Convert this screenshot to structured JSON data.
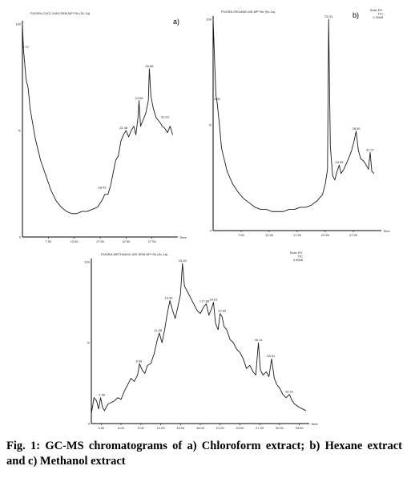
{
  "chart_data": [
    {
      "type": "line",
      "panel_label": "a)",
      "header": "PUGRA-CHCL3-MS-SEM-NP+Se (Sc 1a)",
      "y_ticks": [
        "100",
        "%",
        "0"
      ],
      "x_ticks": [
        "7.50",
        "12.50",
        "17.50",
        "22.50",
        "27.50"
      ],
      "x_axis_label": "Time",
      "xlim": [
        2.5,
        32.5
      ],
      "ylim": [
        0,
        100
      ],
      "peak_labels": [
        {
          "x": 3.1,
          "y": 88,
          "text": "3.70"
        },
        {
          "x": 17.9,
          "y": 22,
          "text": "18.42"
        },
        {
          "x": 22.0,
          "y": 50,
          "text": "22.48"
        },
        {
          "x": 25.0,
          "y": 64,
          "text": "24.95"
        },
        {
          "x": 27.0,
          "y": 79,
          "text": "26.88"
        },
        {
          "x": 30.0,
          "y": 55,
          "text": "31.03"
        }
      ],
      "series": [
        {
          "x": [
            2.5,
            2.7,
            3.0,
            3.2,
            3.6,
            4.0,
            5.0,
            6.0,
            7.0,
            8.0,
            9.0,
            10.0,
            11.0,
            12.0,
            13.0,
            14.0,
            15.0,
            16.0,
            17.0,
            17.8,
            18.4,
            19.0,
            19.5,
            20.0,
            20.5,
            21.0,
            21.5,
            22.0,
            22.5,
            23.0,
            23.5,
            24.0,
            24.4,
            24.8,
            25.0,
            25.3,
            25.8,
            26.3,
            26.8,
            27.0,
            27.3,
            27.8,
            28.3,
            29.0,
            29.5,
            30.0,
            30.5,
            31.0,
            31.5
          ],
          "y": [
            100,
            88,
            80,
            74,
            70,
            60,
            46,
            36,
            29,
            22,
            17,
            14,
            12,
            11,
            11,
            12,
            12,
            13,
            14,
            17,
            20,
            20,
            24,
            30,
            36,
            38,
            45,
            48,
            50,
            47,
            50,
            52,
            48,
            56,
            64,
            52,
            55,
            58,
            64,
            79,
            66,
            60,
            56,
            54,
            52,
            51,
            49,
            52,
            48
          ]
        }
      ]
    },
    {
      "type": "line",
      "panel_label": "b)",
      "header": "PUGRA-HEXANE-MS-NP+Se (Sc 1a)",
      "legend_text": [
        "Scan EI+",
        "TIC",
        "1.30e8"
      ],
      "y_ticks": [
        "100",
        "%",
        "0"
      ],
      "x_ticks": [
        "7.50",
        "12.50",
        "17.50",
        "22.50",
        "27.50"
      ],
      "x_axis_label": "Time",
      "xlim": [
        2.5,
        32.5
      ],
      "ylim": [
        0,
        100
      ],
      "peak_labels": [
        {
          "x": 3.2,
          "y": 61,
          "text": "3.55"
        },
        {
          "x": 23.1,
          "y": 100,
          "text": "23.31"
        },
        {
          "x": 25.0,
          "y": 31,
          "text": "24.95"
        },
        {
          "x": 28.0,
          "y": 47,
          "text": "28.00"
        },
        {
          "x": 30.5,
          "y": 37,
          "text": "31.07"
        }
      ],
      "series": [
        {
          "x": [
            2.5,
            2.8,
            3.0,
            3.2,
            3.4,
            3.7,
            4.0,
            5.0,
            6.0,
            7.0,
            8.0,
            9.0,
            10.0,
            11.0,
            12.0,
            13.0,
            14.0,
            15.0,
            16.0,
            17.0,
            18.0,
            19.0,
            20.0,
            21.0,
            22.0,
            22.5,
            22.9,
            23.1,
            23.4,
            23.8,
            24.2,
            24.6,
            25.0,
            25.3,
            25.8,
            26.3,
            26.8,
            27.2,
            27.6,
            28.0,
            28.4,
            28.8,
            29.3,
            29.8,
            30.2,
            30.5,
            30.8,
            31.2
          ],
          "y": [
            100,
            78,
            64,
            61,
            56,
            48,
            39,
            28,
            22,
            18,
            15,
            13,
            11,
            10,
            10,
            9,
            9,
            9,
            10,
            10,
            11,
            11,
            12,
            14,
            17,
            22,
            29,
            100,
            40,
            26,
            24,
            28,
            31,
            27,
            29,
            32,
            35,
            38,
            42,
            47,
            38,
            34,
            33,
            31,
            29,
            37,
            28,
            27
          ]
        }
      ]
    },
    {
      "type": "line",
      "panel_label": "c)",
      "header": "PUGRA-METHANOL-MS-SEM-NP+Se (Sc 1a)",
      "legend_text": [
        "Scan EI+",
        "TIC",
        "4.50e8"
      ],
      "y_ticks": [
        "100",
        "%",
        "0"
      ],
      "x_ticks": [
        "3.00",
        "6.00",
        "9.00",
        "12.00",
        "15.00",
        "18.00",
        "21.00",
        "24.00",
        "27.00",
        "30.00",
        "33.00"
      ],
      "x_axis_label": "Time",
      "xlim": [
        1.5,
        34.5
      ],
      "ylim": [
        0,
        100
      ],
      "peak_labels": [
        {
          "x": 3.1,
          "y": 16,
          "text": "2.95"
        },
        {
          "x": 8.7,
          "y": 37,
          "text": "8.99"
        },
        {
          "x": 11.6,
          "y": 56,
          "text": "11.58"
        },
        {
          "x": 13.2,
          "y": 76,
          "text": "13.43"
        },
        {
          "x": 15.3,
          "y": 99,
          "text": "15.39"
        },
        {
          "x": 18.6,
          "y": 74,
          "text": "+17.88"
        },
        {
          "x": 20.0,
          "y": 75,
          "text": "20.01"
        },
        {
          "x": 21.3,
          "y": 68,
          "text": "20.69"
        },
        {
          "x": 26.8,
          "y": 50,
          "text": "26.11"
        },
        {
          "x": 28.7,
          "y": 40,
          "text": "28.81"
        },
        {
          "x": 31.5,
          "y": 18,
          "text": "30.91"
        }
      ],
      "series": [
        {
          "x": [
            1.5,
            1.9,
            2.3,
            2.6,
            2.9,
            3.2,
            3.5,
            4.0,
            4.5,
            5.0,
            5.5,
            6.0,
            6.5,
            7.0,
            7.5,
            8.0,
            8.5,
            8.8,
            9.2,
            9.6,
            10.0,
            10.5,
            11.0,
            11.5,
            11.8,
            12.2,
            12.6,
            13.0,
            13.4,
            13.8,
            14.2,
            14.6,
            15.0,
            15.3,
            15.6,
            16.0,
            16.5,
            17.0,
            17.5,
            18.0,
            18.5,
            18.9,
            19.3,
            19.7,
            20.0,
            20.3,
            20.7,
            21.0,
            21.3,
            21.6,
            22.0,
            22.5,
            23.0,
            23.5,
            24.0,
            24.5,
            25.0,
            25.5,
            26.0,
            26.4,
            26.8,
            27.1,
            27.5,
            28.0,
            28.4,
            28.8,
            29.2,
            29.6,
            30.0,
            30.5,
            31.0,
            31.5,
            31.9,
            32.3,
            33.0,
            33.5,
            34.0
          ],
          "y": [
            6,
            16,
            14,
            9,
            16,
            10,
            8,
            12,
            13,
            14,
            16,
            15,
            20,
            24,
            28,
            26,
            30,
            37,
            33,
            31,
            36,
            37,
            43,
            52,
            56,
            50,
            58,
            68,
            76,
            70,
            65,
            72,
            80,
            99,
            85,
            82,
            78,
            74,
            70,
            68,
            72,
            74,
            67,
            71,
            75,
            62,
            58,
            68,
            66,
            60,
            58,
            52,
            50,
            46,
            44,
            40,
            34,
            36,
            32,
            30,
            50,
            33,
            30,
            32,
            29,
            40,
            28,
            24,
            22,
            18,
            16,
            18,
            14,
            12,
            10,
            9,
            8
          ]
        }
      ]
    }
  ],
  "caption": "Fig. 1: GC-MS chromatograms of a) Chloroform extract; b) Hexane extract and c) Methanol extract"
}
